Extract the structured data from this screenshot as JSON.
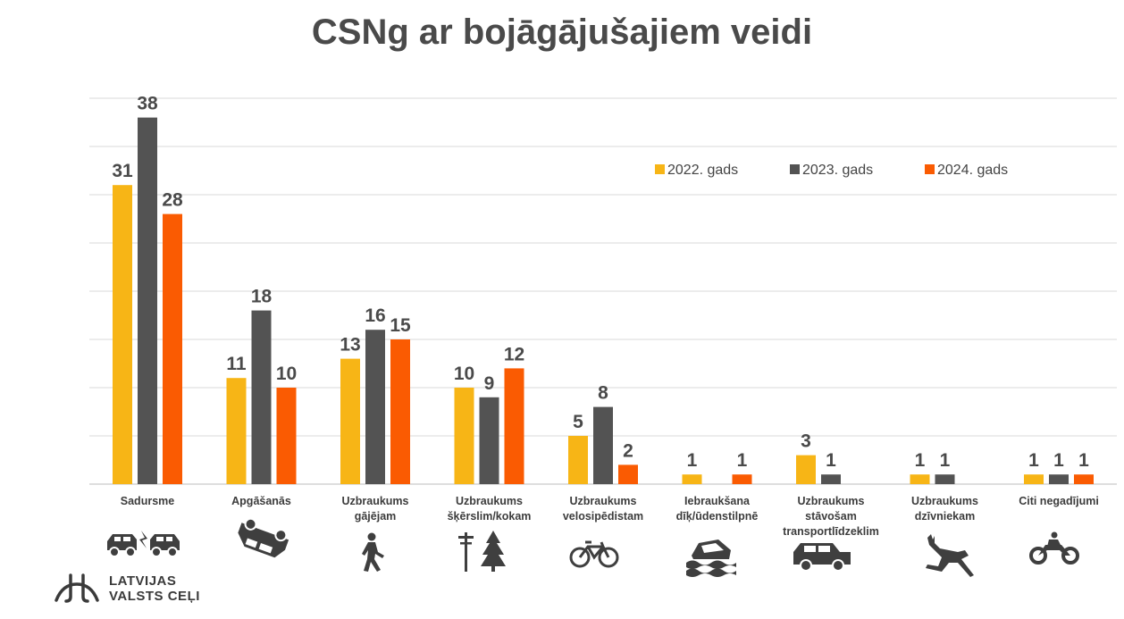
{
  "title": "CSNg ar bojāgājušajiem veidi",
  "logo": {
    "line1": "LATVIJAS",
    "line2": "VALSTS CEĻI"
  },
  "colors": {
    "2022": "#F7B516",
    "2023": "#535353",
    "2024": "#FA5B02",
    "grid": "#d9d9d9",
    "icon": "#3f3f3f"
  },
  "chart_data": {
    "type": "bar",
    "title": "CSNg ar bojāgājušajiem veidi",
    "xlabel": "",
    "ylabel": "",
    "ylim": [
      0,
      40
    ],
    "grid": true,
    "legend_position": "top-right",
    "categories": [
      [
        "Sadursme"
      ],
      [
        "Apgāšanās"
      ],
      [
        "Uzbraukums",
        "gājējam"
      ],
      [
        "Uzbraukums",
        "šķērslim/kokam"
      ],
      [
        "Uzbraukums",
        "velosipēdistam"
      ],
      [
        "Iebraukšana",
        "dīķ/ūdenstilpnē"
      ],
      [
        "Uzbraukums",
        "stāvošam",
        "transportlīdzeklim"
      ],
      [
        "Uzbraukums",
        "dzīvniekam"
      ],
      [
        "Citi negadījumi"
      ]
    ],
    "category_icons": [
      "car-collision-icon",
      "overturned-car-icon",
      "pedestrian-icon",
      "pole-tree-icon",
      "bicycle-icon",
      "car-in-water-icon",
      "parked-car-icon",
      "deer-icon",
      "motorcycle-icon"
    ],
    "series": [
      {
        "name": "2022. gads",
        "values": [
          31,
          11,
          13,
          10,
          5,
          1,
          3,
          1,
          1
        ]
      },
      {
        "name": "2023. gads",
        "values": [
          38,
          18,
          16,
          9,
          8,
          null,
          1,
          1,
          1
        ]
      },
      {
        "name": "2024. gads",
        "values": [
          28,
          10,
          15,
          12,
          2,
          1,
          null,
          null,
          1
        ]
      }
    ]
  }
}
